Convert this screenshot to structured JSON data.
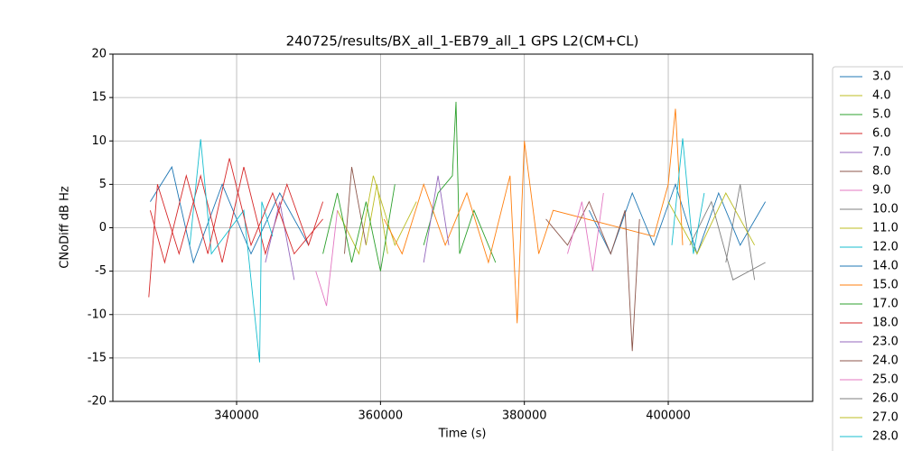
{
  "chart_data": {
    "type": "line",
    "title": "240725/results/BX_all_1-EB79_all_1 GPS L2(CM+CL)",
    "x_label": "Time (s)",
    "y_label": "CNoDiff dB Hz",
    "xlim": [
      322800,
      420080
    ],
    "ylim": [
      -20,
      20
    ],
    "xticks": [
      340000,
      360000,
      380000,
      400000
    ],
    "yticks": [
      -20,
      -15,
      -10,
      -5,
      0,
      5,
      10,
      15,
      20
    ],
    "grid": true,
    "legend": "right",
    "series": [
      {
        "name": "3.0",
        "color": "#1f77b4",
        "x": [
          328000,
          331000,
          334000,
          338000,
          342000,
          346000,
          350000
        ],
        "values": [
          3,
          7,
          -4,
          5,
          -3,
          4,
          -2
        ]
      },
      {
        "name": "4.0",
        "color": "#bcbd22",
        "x": [
          354000,
          357000,
          359000,
          362000,
          365000
        ],
        "values": [
          2,
          -3,
          6,
          -2,
          3
        ]
      },
      {
        "name": "5.0",
        "color": "#2ca02c",
        "x": [
          366000,
          368000,
          370000,
          370500,
          371000,
          373000,
          376000
        ],
        "values": [
          -2,
          4,
          6,
          14.5,
          -3,
          2,
          -4
        ]
      },
      {
        "name": "6.0",
        "color": "#d62728",
        "x": [
          327800,
          329000,
          332000,
          335000,
          338000,
          341000,
          344000,
          347000,
          350000,
          352000
        ],
        "values": [
          -8,
          5,
          -3,
          6,
          -4,
          7,
          -3,
          5,
          -2,
          3
        ]
      },
      {
        "name": "7.0",
        "color": "#9467bd",
        "x": [
          344000,
          346000,
          348000
        ],
        "values": [
          -4,
          3,
          -6
        ]
      },
      {
        "name": "8.0",
        "color": "#8c564b",
        "x": [
          355000,
          356000,
          358000
        ],
        "values": [
          -3,
          7,
          -2
        ]
      },
      {
        "name": "9.0",
        "color": "#e377c2",
        "x": [
          351000,
          352500,
          354000
        ],
        "values": [
          -5,
          -9,
          2
        ]
      },
      {
        "name": "10.0",
        "color": "#7f7f7f",
        "x": [
          408000,
          410000,
          412000
        ],
        "values": [
          -4,
          5,
          -6
        ]
      },
      {
        "name": "11.0",
        "color": "#bcbd22",
        "x": [
          358000,
          359500,
          361000
        ],
        "values": [
          -2,
          5,
          -3
        ]
      },
      {
        "name": "12.0",
        "color": "#17becf",
        "x": [
          333500,
          335000,
          336500,
          341000,
          343200,
          343500,
          345000
        ],
        "values": [
          -2,
          10.2,
          -3,
          2,
          -15.5,
          3,
          -1
        ]
      },
      {
        "name": "14.0",
        "color": "#1f77b4",
        "x": [
          389000,
          392000,
          395000,
          398000,
          401000,
          404000,
          407000,
          410000,
          413500
        ],
        "values": [
          2,
          -3,
          4,
          -2,
          5,
          -3,
          4,
          -2,
          3
        ]
      },
      {
        "name": "15.0",
        "color": "#ff7f0e",
        "x": [
          360500,
          363000,
          366000,
          369000,
          372000,
          375000,
          378000,
          379000,
          380000,
          382000,
          384000,
          398000,
          400000,
          401000,
          402000
        ],
        "values": [
          1,
          -3,
          5,
          -2,
          4,
          -4,
          6,
          -11,
          10,
          -3,
          2,
          -1,
          5,
          13.7,
          -2
        ]
      },
      {
        "name": "17.0",
        "color": "#2ca02c",
        "x": [
          352000,
          354000,
          356000,
          358000,
          360000,
          362000
        ],
        "values": [
          -3,
          4,
          -4,
          3,
          -5,
          5
        ]
      },
      {
        "name": "18.0",
        "color": "#d62728",
        "x": [
          328000,
          330000,
          333000,
          336000,
          339000,
          342000,
          345000,
          348000,
          352000
        ],
        "values": [
          2,
          -4,
          6,
          -3,
          8,
          -2,
          4,
          -3,
          1
        ]
      },
      {
        "name": "23.0",
        "color": "#9467bd",
        "x": [
          366000,
          368000,
          369500
        ],
        "values": [
          -4,
          6,
          -2
        ]
      },
      {
        "name": "24.0",
        "color": "#8c564b",
        "x": [
          383000,
          386000,
          389000,
          392000,
          394000,
          395000,
          396000
        ],
        "values": [
          1,
          -2,
          3,
          -3,
          2,
          -14.2,
          1
        ]
      },
      {
        "name": "25.0",
        "color": "#e377c2",
        "x": [
          386000,
          388000,
          389500,
          391000
        ],
        "values": [
          -3,
          3,
          -5,
          4
        ]
      },
      {
        "name": "26.0",
        "color": "#7f7f7f",
        "x": [
          403000,
          406000,
          409000,
          413500
        ],
        "values": [
          -2,
          3,
          -6,
          -4
        ]
      },
      {
        "name": "27.0",
        "color": "#bcbd22",
        "x": [
          400000,
          404000,
          408000,
          412000
        ],
        "values": [
          3,
          -3,
          4,
          -2
        ]
      },
      {
        "name": "28.0",
        "color": "#17becf",
        "x": [
          400500,
          402000,
          403500,
          405000
        ],
        "values": [
          -2,
          10.3,
          -3,
          4
        ]
      }
    ]
  }
}
